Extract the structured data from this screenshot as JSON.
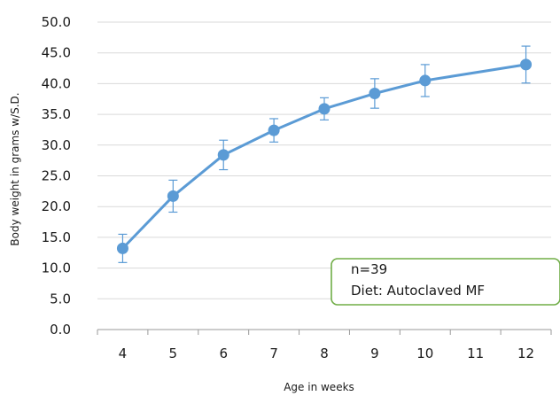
{
  "chart_data": {
    "type": "line",
    "title": "",
    "xlabel": "Age in weeks",
    "ylabel": "Body weight in grams w/S.D.",
    "categories": [
      "4",
      "5",
      "6",
      "7",
      "8",
      "9",
      "10",
      "11",
      "12"
    ],
    "ylim": [
      0,
      50
    ],
    "ytick_labels": [
      "0.0",
      "5.0",
      "10.0",
      "15.0",
      "20.0",
      "25.0",
      "30.0",
      "35.0",
      "40.0",
      "45.0",
      "50.0"
    ],
    "grid": "horizontal",
    "series": [
      {
        "x": [
          4,
          5,
          6,
          7,
          8,
          9,
          10,
          12
        ],
        "values": [
          13.2,
          21.7,
          28.4,
          32.4,
          35.9,
          38.4,
          40.5,
          43.1
        ],
        "sd": [
          2.3,
          2.6,
          2.4,
          1.9,
          1.8,
          2.4,
          2.6,
          3.0
        ],
        "color": "#5b9bd5"
      }
    ],
    "annotation": {
      "lines": [
        "n=39",
        "Diet: Autoclaved MF"
      ],
      "border_color": "#70ad47"
    }
  }
}
